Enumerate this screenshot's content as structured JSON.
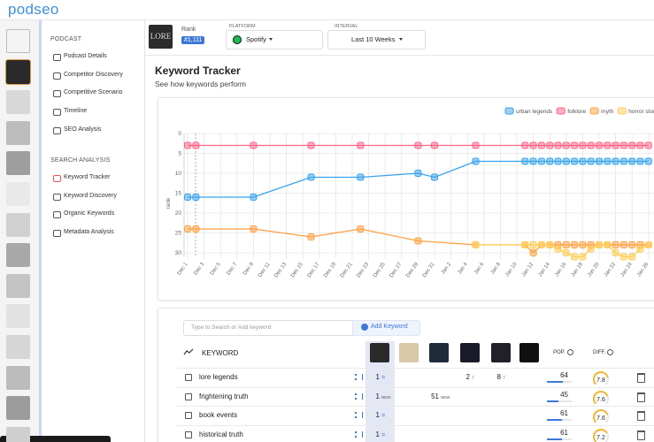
{
  "header": {
    "logo": "podseo"
  },
  "sidebar": {
    "sections": [
      {
        "title": "PODCAST",
        "items": [
          "Podcast Details",
          "Competitor Discovery",
          "Competitive Scenario",
          "Timeline",
          "SEO Analysis"
        ]
      },
      {
        "title": "SEARCH ANALYSIS",
        "items": [
          "Keyword Tracker",
          "Keyword Discovery",
          "Organic Keywords",
          "Metadata Analysis"
        ]
      }
    ]
  },
  "podcast": {
    "thumbnail": "LORE",
    "rank_label": "Rank",
    "rank": "#1,111"
  },
  "filters": [
    {
      "label": "PLATFORM",
      "value": "Spotify"
    },
    {
      "label": "INTERVAL",
      "value": "Last 10 Weeks"
    }
  ],
  "page": {
    "title": "Keyword Tracker",
    "subtitle": "See how keywords perform"
  },
  "chart_data": {
    "type": "line",
    "y_label": "rank",
    "ylim": [
      0,
      31
    ],
    "reversed": true,
    "yticks": [
      0,
      5,
      10,
      15,
      20,
      25,
      30
    ],
    "grid": true,
    "legend": "top-right",
    "xticks": [
      "Dec 1",
      "Dec 3",
      "Dec 5",
      "Dec 7",
      "Dec 9",
      "Dec 11",
      "Dec 13",
      "Dec 15",
      "Dec 17",
      "Dec 19",
      "Dec 21",
      "Dec 23",
      "Dec 25",
      "Dec 27",
      "Dec 29",
      "Dec 31",
      "Jan 2",
      "Jan 4",
      "Jan 6",
      "Jan 8",
      "Jan 10",
      "Jan 12",
      "Jan 14",
      "Jan 16",
      "Jan 18",
      "Jan 20",
      "Jan 22",
      "Jan 24",
      "Jan 26"
    ],
    "series": [
      {
        "name": "urban legends",
        "color": "#36a2eb",
        "x": [
          "Dec 1",
          "Dec 2",
          "Dec 9",
          "Dec 16",
          "Dec 22",
          "Dec 29",
          "Dec 31",
          "Jan 5",
          "Jan 11",
          "Jan 12",
          "Jan 13",
          "Jan 14",
          "Jan 15",
          "Jan 16",
          "Jan 17",
          "Jan 18",
          "Jan 19",
          "Jan 20",
          "Jan 21",
          "Jan 22",
          "Jan 23",
          "Jan 24",
          "Jan 25",
          "Jan 26"
        ],
        "values": [
          16,
          16,
          16,
          11,
          11,
          10,
          11,
          7,
          7,
          7,
          7,
          7,
          7,
          7,
          7,
          7,
          7,
          7,
          7,
          7,
          7,
          7,
          7,
          7
        ]
      },
      {
        "name": "folklore",
        "color": "#ff6384",
        "x": [
          "Dec 1",
          "Dec 2",
          "Dec 9",
          "Dec 16",
          "Dec 22",
          "Dec 29",
          "Dec 31",
          "Jan 5",
          "Jan 11",
          "Jan 12",
          "Jan 13",
          "Jan 14",
          "Jan 15",
          "Jan 16",
          "Jan 17",
          "Jan 18",
          "Jan 19",
          "Jan 20",
          "Jan 21",
          "Jan 22",
          "Jan 23",
          "Jan 24",
          "Jan 25",
          "Jan 26"
        ],
        "values": [
          3,
          3,
          3,
          3,
          3,
          3,
          3,
          3,
          3,
          3,
          3,
          3,
          3,
          3,
          3,
          3,
          3,
          3,
          3,
          3,
          3,
          3,
          3,
          3
        ]
      },
      {
        "name": "myth",
        "color": "#ff9f40",
        "x": [
          "Dec 1",
          "Dec 2",
          "Dec 9",
          "Dec 16",
          "Dec 22",
          "Dec 29",
          "Jan 5",
          "Jan 11",
          "Jan 12",
          "Jan 13",
          "Jan 14",
          "Jan 15",
          "Jan 16",
          "Jan 17",
          "Jan 18",
          "Jan 19",
          "Jan 20",
          "Jan 21",
          "Jan 22",
          "Jan 23",
          "Jan 24",
          "Jan 25",
          "Jan 26"
        ],
        "values": [
          24,
          24,
          24,
          26,
          24,
          27,
          28,
          28,
          30,
          28,
          28,
          28,
          28,
          28,
          28,
          28,
          28,
          28,
          28,
          28,
          28,
          28,
          28
        ]
      },
      {
        "name": "horror stories",
        "color": "#ffcd56",
        "x": [
          "Jan 5",
          "Jan 11",
          "Jan 12",
          "Jan 13",
          "Jan 14",
          "Jan 15",
          "Jan 16",
          "Jan 17",
          "Jan 18",
          "Jan 19",
          "Jan 20",
          "Jan 21",
          "Jan 22",
          "Jan 23",
          "Jan 24",
          "Jan 25",
          "Jan 26"
        ],
        "values": [
          28,
          28,
          28,
          28,
          28,
          29,
          30,
          31,
          31,
          29,
          28,
          28,
          30,
          31,
          31,
          29,
          28
        ]
      }
    ]
  },
  "table": {
    "search_placeholder": "Type to Search or Add keyword",
    "add_button": "Add Keyword",
    "columns": {
      "keyword": "KEYWORD",
      "pop": "POP.",
      "diff": "DIFF."
    },
    "rows": [
      {
        "keyword": "lore legends",
        "ranks": [
          {
            "rank": 1,
            "change": "="
          },
          null,
          null,
          {
            "rank": 2,
            "change": "↑"
          },
          {
            "rank": 8,
            "change": "↑"
          },
          null
        ],
        "pop": 64,
        "diff": 7.8
      },
      {
        "keyword": "frightening truth",
        "ranks": [
          {
            "rank": 1,
            "change": "NEW"
          },
          null,
          {
            "rank": 51,
            "change": "NEW"
          },
          null,
          null,
          null
        ],
        "pop": 45,
        "diff": 7.6
      },
      {
        "keyword": "book events",
        "ranks": [
          {
            "rank": 1,
            "change": "="
          },
          null,
          null,
          null,
          null,
          null
        ],
        "pop": 61,
        "diff": 7.6
      },
      {
        "keyword": "historical truth",
        "ranks": [
          {
            "rank": 1,
            "change": "="
          },
          null,
          null,
          null,
          null,
          null
        ],
        "pop": 61,
        "diff": 7.2
      }
    ]
  }
}
